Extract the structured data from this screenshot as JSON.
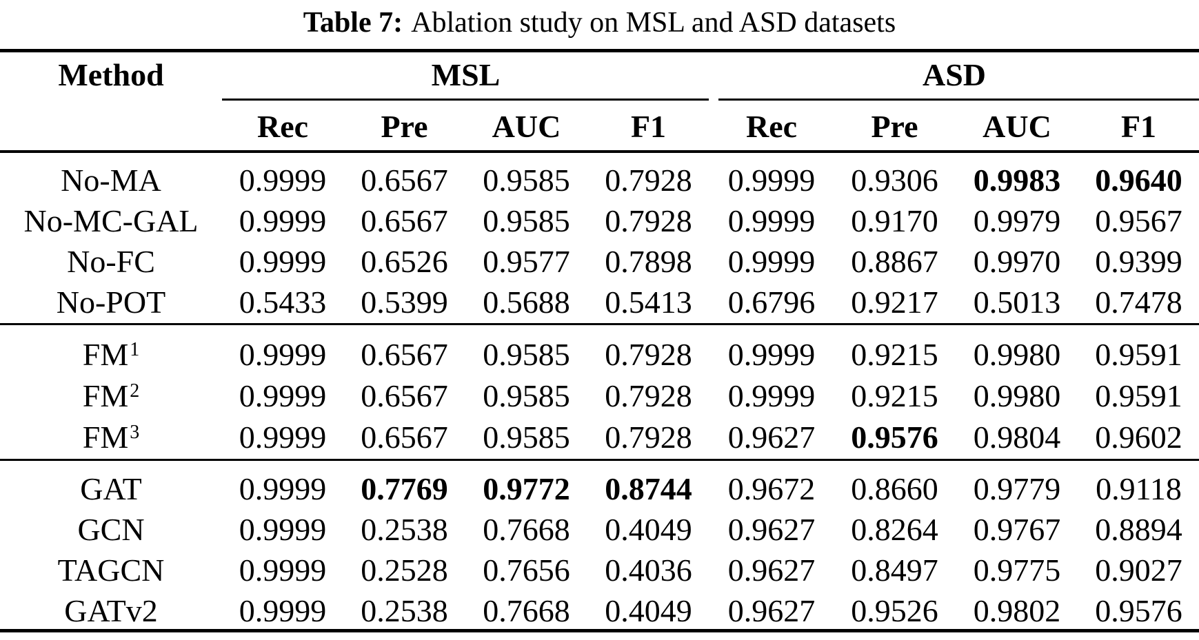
{
  "caption": {
    "label": "Table 7:",
    "text": "Ablation study on MSL and ASD datasets"
  },
  "table": {
    "method_header": "Method",
    "group_headers": [
      {
        "label": "MSL"
      },
      {
        "label": "ASD"
      }
    ],
    "sub_headers": [
      "Rec",
      "Pre",
      "AUC",
      "F1",
      "Rec",
      "Pre",
      "AUC",
      "F1"
    ],
    "row_groups": [
      {
        "rows": [
          {
            "method": "No-MA",
            "sup": "",
            "values": [
              "0.9999",
              "0.6567",
              "0.9585",
              "0.7928",
              "0.9999",
              "0.9306",
              "0.9983",
              "0.9640"
            ],
            "bold": [
              6,
              7
            ]
          },
          {
            "method": "No-MC-GAL",
            "sup": "",
            "values": [
              "0.9999",
              "0.6567",
              "0.9585",
              "0.7928",
              "0.9999",
              "0.9170",
              "0.9979",
              "0.9567"
            ],
            "bold": []
          },
          {
            "method": "No-FC",
            "sup": "",
            "values": [
              "0.9999",
              "0.6526",
              "0.9577",
              "0.7898",
              "0.9999",
              "0.8867",
              "0.9970",
              "0.9399"
            ],
            "bold": []
          },
          {
            "method": "No-POT",
            "sup": "",
            "values": [
              "0.5433",
              "0.5399",
              "0.5688",
              "0.5413",
              "0.6796",
              "0.9217",
              "0.5013",
              "0.7478"
            ],
            "bold": []
          }
        ]
      },
      {
        "rows": [
          {
            "method": "FM",
            "sup": "1",
            "values": [
              "0.9999",
              "0.6567",
              "0.9585",
              "0.7928",
              "0.9999",
              "0.9215",
              "0.9980",
              "0.9591"
            ],
            "bold": []
          },
          {
            "method": "FM",
            "sup": "2",
            "values": [
              "0.9999",
              "0.6567",
              "0.9585",
              "0.7928",
              "0.9999",
              "0.9215",
              "0.9980",
              "0.9591"
            ],
            "bold": []
          },
          {
            "method": "FM",
            "sup": "3",
            "values": [
              "0.9999",
              "0.6567",
              "0.9585",
              "0.7928",
              "0.9627",
              "0.9576",
              "0.9804",
              "0.9602"
            ],
            "bold": [
              5
            ]
          }
        ]
      },
      {
        "rows": [
          {
            "method": "GAT",
            "sup": "",
            "values": [
              "0.9999",
              "0.7769",
              "0.9772",
              "0.8744",
              "0.9672",
              "0.8660",
              "0.9779",
              "0.9118"
            ],
            "bold": [
              1,
              2,
              3
            ]
          },
          {
            "method": "GCN",
            "sup": "",
            "values": [
              "0.9999",
              "0.2538",
              "0.7668",
              "0.4049",
              "0.9627",
              "0.8264",
              "0.9767",
              "0.8894"
            ],
            "bold": []
          },
          {
            "method": "TAGCN",
            "sup": "",
            "values": [
              "0.9999",
              "0.2528",
              "0.7656",
              "0.4036",
              "0.9627",
              "0.8497",
              "0.9775",
              "0.9027"
            ],
            "bold": []
          },
          {
            "method": "GATv2",
            "sup": "",
            "values": [
              "0.9999",
              "0.2538",
              "0.7668",
              "0.4049",
              "0.9627",
              "0.9526",
              "0.9802",
              "0.9576"
            ],
            "bold": []
          }
        ]
      }
    ]
  }
}
